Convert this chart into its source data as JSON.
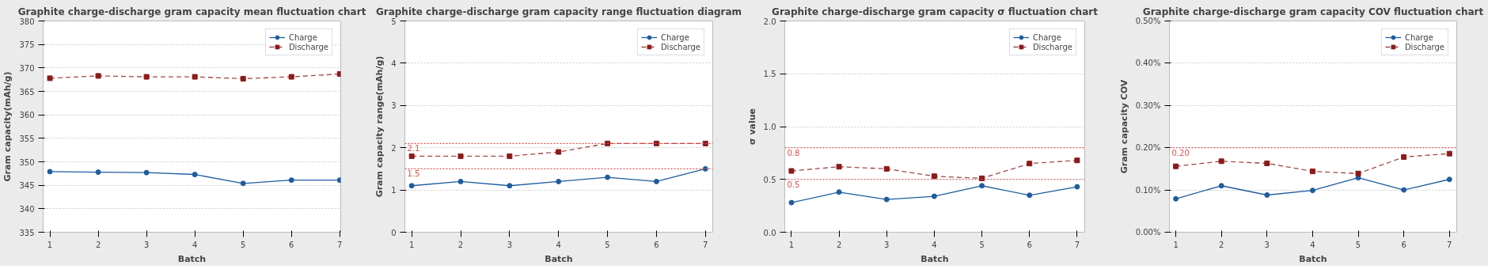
{
  "chart_data": [
    {
      "type": "line",
      "title": "Graphite charge-discharge gram capacity mean fluctuation chart",
      "xlabel": "Batch",
      "ylabel": "Gram capacity(mAh/g)",
      "x": [
        1,
        2,
        3,
        4,
        5,
        6,
        7
      ],
      "xlim": [
        0.86,
        7.02
      ],
      "xticks": [
        1,
        2,
        3,
        4,
        5,
        6,
        7
      ],
      "ylim": [
        335,
        380
      ],
      "yticks": [
        335,
        340,
        345,
        350,
        355,
        360,
        365,
        370,
        375,
        380
      ],
      "grid": "y",
      "legend": "top right",
      "series": [
        {
          "name": "Charge",
          "color": "#1f5c9e",
          "marker": "circle",
          "line_style": "solid",
          "values": [
            347.9,
            347.8,
            347.7,
            347.3,
            345.4,
            346.1,
            346.1
          ]
        },
        {
          "name": "Discharge",
          "color": "#8b1a1a",
          "marker": "square",
          "line_style": "dashed",
          "values": [
            367.8,
            368.3,
            368.1,
            368.1,
            367.7,
            368.1,
            368.7
          ]
        }
      ]
    },
    {
      "type": "line",
      "title": "Graphite charge-discharge gram capacity range fluctuation diagram",
      "xlabel": "Batch",
      "ylabel": "Gram capacity range(mAh/g)",
      "x": [
        1,
        2,
        3,
        4,
        5,
        6,
        7
      ],
      "xlim": [
        0.86,
        7.15
      ],
      "xticks": [
        1,
        2,
        3,
        4,
        5,
        6,
        7
      ],
      "ylim": [
        0,
        5
      ],
      "yticks": [
        0,
        1,
        2,
        3,
        4,
        5
      ],
      "grid": "y",
      "legend": "top right",
      "series": [
        {
          "name": "Charge",
          "color": "#1f5c9e",
          "marker": "circle",
          "line_style": "solid",
          "values": [
            1.1,
            1.2,
            1.1,
            1.2,
            1.3,
            1.2,
            1.5
          ]
        },
        {
          "name": "Discharge",
          "color": "#8b1a1a",
          "marker": "square",
          "line_style": "dashed",
          "values": [
            1.8,
            1.8,
            1.8,
            1.9,
            2.1,
            2.1,
            2.1
          ]
        }
      ],
      "ref_lines": [
        {
          "axis": "y",
          "value": 2.1,
          "label": "2.1",
          "color": "#e05050",
          "line_style": "dotted"
        },
        {
          "axis": "y",
          "value": 1.5,
          "label": "1.5",
          "color": "#e05050",
          "line_style": "dotted"
        }
      ]
    },
    {
      "type": "line",
      "title": "Graphite charge-discharge gram capacity σ fluctuation chart",
      "xlabel": "Batch",
      "ylabel": "σ value",
      "x": [
        1,
        2,
        3,
        4,
        5,
        6,
        7
      ],
      "xlim": [
        0.86,
        7.16
      ],
      "xticks": [
        1,
        2,
        3,
        4,
        5,
        6,
        7
      ],
      "ylim": [
        0,
        2
      ],
      "yticks": [
        {
          "value": 0,
          "label": "0.0"
        },
        0.5,
        {
          "value": 1,
          "label": "1.0"
        },
        1.5,
        {
          "value": 2,
          "label": "2.0"
        }
      ],
      "grid": "y",
      "legend": "top right",
      "series": [
        {
          "name": "Charge",
          "color": "#1f5c9e",
          "marker": "circle",
          "line_style": "solid",
          "values": [
            0.28,
            0.38,
            0.31,
            0.34,
            0.44,
            0.35,
            0.43
          ]
        },
        {
          "name": "Discharge",
          "color": "#8b1a1a",
          "marker": "square",
          "line_style": "dashed",
          "values": [
            0.58,
            0.62,
            0.6,
            0.53,
            0.51,
            0.65,
            0.68
          ]
        }
      ],
      "ref_lines": [
        {
          "axis": "y",
          "value": 0.8,
          "label": "0.8",
          "color": "#e05050",
          "line_style": "dotted"
        },
        {
          "axis": "y",
          "value": 0.5,
          "label": "0.5",
          "color": "#e05050",
          "line_style": "dotted"
        }
      ]
    },
    {
      "type": "line",
      "title": "Graphite charge-discharge gram capacity COV fluctuation chart",
      "xlabel": "Batch",
      "ylabel": "Gram capacity COV",
      "x": [
        1,
        2,
        3,
        4,
        5,
        6,
        7
      ],
      "xlim": [
        0.86,
        7.16
      ],
      "xticks": [
        1,
        2,
        3,
        4,
        5,
        6,
        7
      ],
      "ylim": [
        0,
        0.5
      ],
      "yticks": [
        {
          "value": 0,
          "label": "0.00%"
        },
        {
          "value": 0.1,
          "label": "0.10%"
        },
        {
          "value": 0.2,
          "label": "0.20%"
        },
        {
          "value": 0.3,
          "label": "0.30%"
        },
        {
          "value": 0.4,
          "label": "0.40%"
        },
        {
          "value": 0.5,
          "label": "0.50%"
        }
      ],
      "grid": "y",
      "legend": "top right",
      "series": [
        {
          "name": "Charge",
          "color": "#1f5c9e",
          "marker": "circle",
          "line_style": "solid",
          "values": [
            0.079,
            0.11,
            0.088,
            0.099,
            0.129,
            0.1,
            0.125
          ]
        },
        {
          "name": "Discharge",
          "color": "#8b1a1a",
          "marker": "square",
          "line_style": "dashed",
          "values": [
            0.156,
            0.168,
            0.163,
            0.144,
            0.139,
            0.178,
            0.186
          ]
        }
      ],
      "ref_lines": [
        {
          "axis": "y",
          "value": 0.2,
          "label": "0.20",
          "color": "#e05050",
          "line_style": "dotted"
        }
      ]
    }
  ]
}
